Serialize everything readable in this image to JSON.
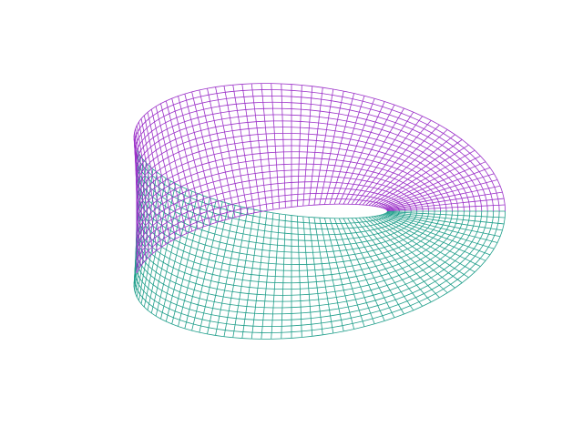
{
  "figure": {
    "description_type": "3d-wireframe-surface",
    "shape": "mobius-strip",
    "grid": {
      "u_lines": 61,
      "v_lines": 21
    },
    "colors": {
      "background": "#ffffff",
      "front_band": "#9b30c8",
      "back_band": "#1f9e8a"
    }
  }
}
